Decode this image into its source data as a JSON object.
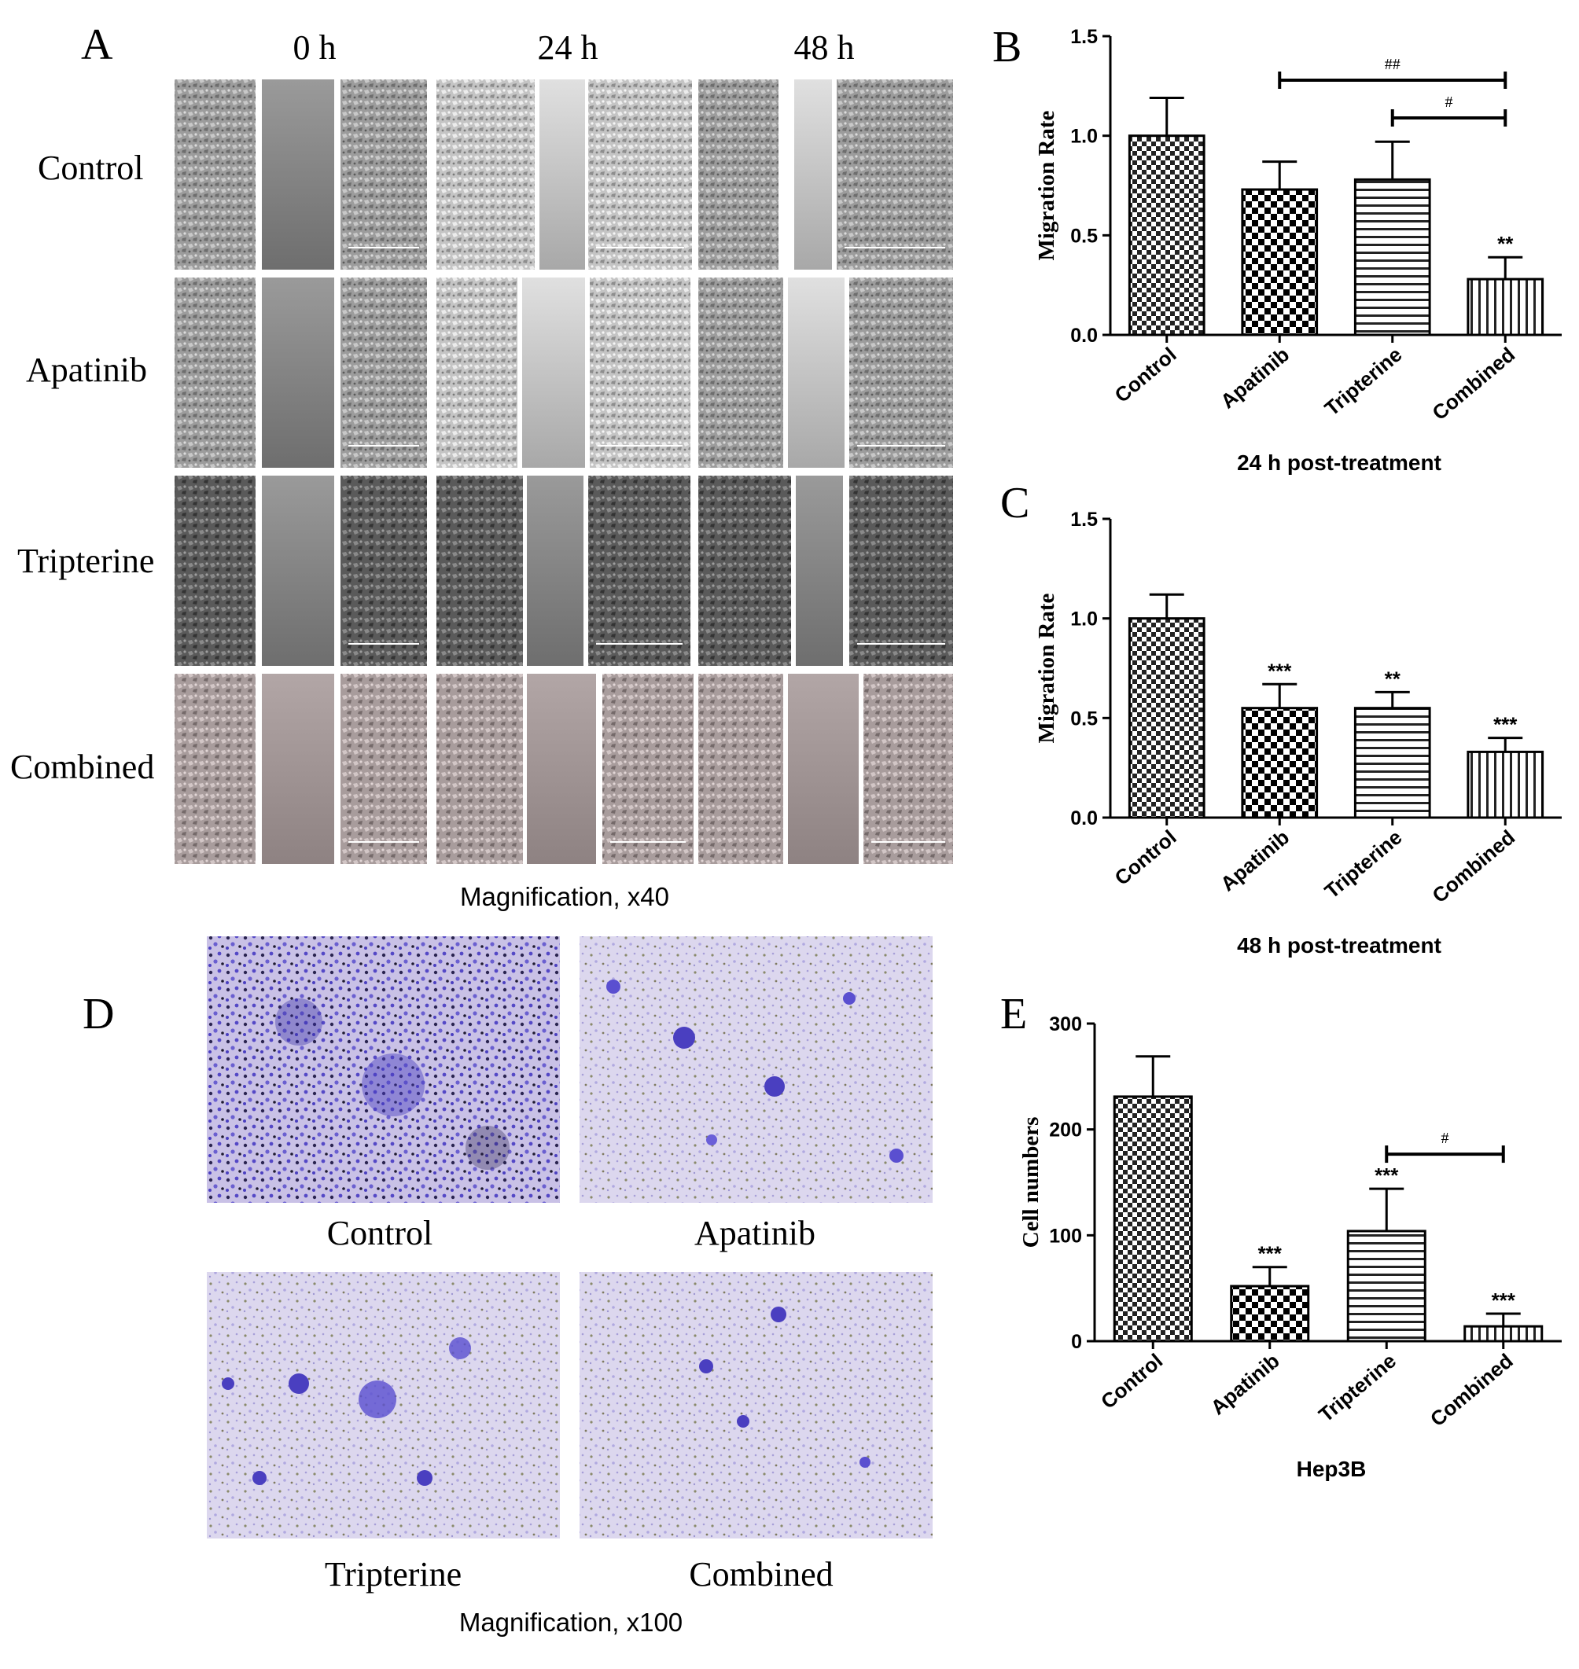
{
  "panels": {
    "A": {
      "letter": "A",
      "time_labels": [
        "0 h",
        "24 h",
        "48 h"
      ],
      "row_labels": [
        "Control",
        "Apatinib",
        "Tripterine",
        "Combined"
      ],
      "caption": "Magnification, x40"
    },
    "D": {
      "letter": "D",
      "image_labels": [
        "Control",
        "Apatinib",
        "Tripterine",
        "Combined"
      ],
      "caption": "Magnification, x100"
    }
  },
  "colors": {
    "scratch_gray": "#8a8a8a",
    "cell_gray": "#9a9a9a",
    "stain_bg": "#ddd8ee",
    "stain_blue": "#4a3fc0"
  },
  "chart_data": [
    {
      "panel": "B",
      "type": "bar",
      "categories": [
        "Control",
        "Apatinib",
        "Tripterine",
        "Combined"
      ],
      "values": [
        1.0,
        0.73,
        0.78,
        0.28
      ],
      "errors": [
        0.19,
        0.14,
        0.19,
        0.11
      ],
      "significance": [
        "",
        "",
        "",
        "**"
      ],
      "patterns": [
        "checker",
        "checker-bold",
        "horizontal",
        "vertical"
      ],
      "comparisons": [
        {
          "from": "Apatinib",
          "to": "Combined",
          "label": "##"
        },
        {
          "from": "Tripterine",
          "to": "Combined",
          "label": "#"
        }
      ],
      "xlabel": "24 h post-treatment",
      "ylabel": "Migration Rate",
      "ylim": [
        0,
        1.5
      ],
      "yticks": [
        "0.0",
        "0.5",
        "1.0",
        "1.5"
      ]
    },
    {
      "panel": "C",
      "type": "bar",
      "categories": [
        "Control",
        "Apatinib",
        "Tripterine",
        "Combined"
      ],
      "values": [
        1.0,
        0.55,
        0.55,
        0.33
      ],
      "errors": [
        0.12,
        0.12,
        0.08,
        0.07
      ],
      "significance": [
        "",
        "***",
        "**",
        "***"
      ],
      "patterns": [
        "checker",
        "checker-bold",
        "horizontal",
        "vertical"
      ],
      "comparisons": [],
      "xlabel": "48 h post-treatment",
      "ylabel": "Migration Rate",
      "ylim": [
        0,
        1.5
      ],
      "yticks": [
        "0.0",
        "0.5",
        "1.0",
        "1.5"
      ]
    },
    {
      "panel": "E",
      "type": "bar",
      "categories": [
        "Control",
        "Apatinib",
        "Tripterine",
        "Combined"
      ],
      "values": [
        231,
        52,
        104,
        14
      ],
      "errors": [
        38,
        18,
        40,
        12
      ],
      "significance": [
        "",
        "***",
        "***",
        "***"
      ],
      "patterns": [
        "checker",
        "checker-bold",
        "horizontal",
        "vertical"
      ],
      "comparisons": [
        {
          "from": "Tripterine",
          "to": "Combined",
          "label": "#"
        }
      ],
      "xlabel": "Hep3B",
      "ylabel": "Cell numbers",
      "ylim": [
        0,
        300
      ],
      "yticks": [
        "0",
        "100",
        "200",
        "300"
      ]
    }
  ]
}
